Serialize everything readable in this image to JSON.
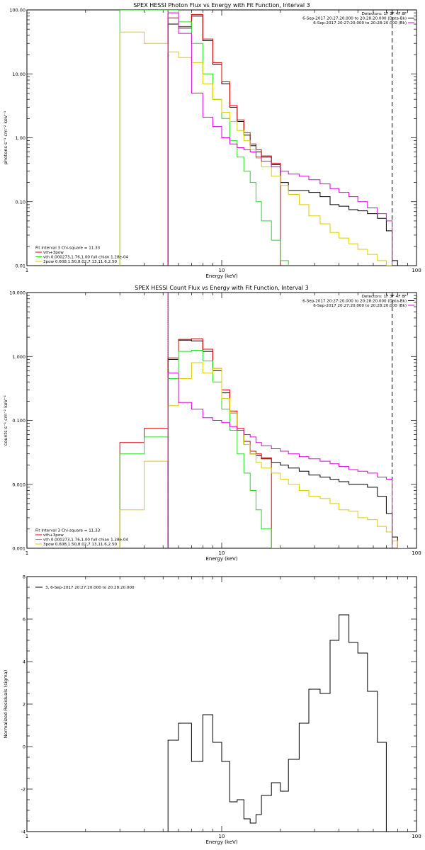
{
  "colors": {
    "black": "#000000",
    "red": "#dd0000",
    "green": "#22dd22",
    "yellow": "#ddcc00",
    "magenta": "#dd00dd",
    "purple": "#8800aa"
  },
  "chart_data": [
    {
      "type": "line",
      "title": "SPEX HESSI Photon Flux vs Energy with Fit Function, Interval 3",
      "xlabel": "Energy (keV)",
      "ylabel": "photons s⁻¹ cm⁻² keV⁻¹",
      "xscale": "log",
      "yscale": "log",
      "xlim": [
        1,
        100
      ],
      "ylim": [
        0.01,
        100
      ],
      "xticks": [
        {
          "v": 1,
          "label": "1"
        },
        {
          "v": 10,
          "label": "10"
        },
        {
          "v": 100,
          "label": "100"
        }
      ],
      "yticks": [
        {
          "v": 0.01,
          "label": "0.01"
        },
        {
          "v": 0.1,
          "label": "0.10"
        },
        {
          "v": 1,
          "label": "1.00"
        },
        {
          "v": 10,
          "label": "10.00"
        },
        {
          "v": 100,
          "label": "100.00"
        }
      ],
      "legend_top": [
        {
          "text": "Detectors: 1F 3F 4F 8F",
          "color": ""
        },
        {
          "text": "6-Sep-2017 20:27:20.000 to 20:28:20.000 (Data-Bk)",
          "color": "black"
        },
        {
          "text": "6-Sep-2017 20:27:20.000 to 20:28:20.000 (Bk)",
          "color": "magenta"
        }
      ],
      "legend_bottom": [
        {
          "text": "Fit Interval 3   Chi-square = 11.33",
          "color": ""
        },
        {
          "text": "vth+3pow",
          "color": "red"
        },
        {
          "text": "vth 0.000273,1.76,1.00   full chian 1.28e-04",
          "color": "green"
        },
        {
          "text": "3pow 0.608,1.50,8.02,7.13,11.6,2.50",
          "color": "yellow"
        }
      ],
      "vlines": [
        {
          "x": 5.3,
          "color": "purple",
          "dash": ""
        },
        {
          "x": 75,
          "color": "black",
          "dash": "6,4"
        }
      ],
      "edges": [
        3,
        4,
        5.3,
        6,
        7,
        8,
        9,
        10,
        11,
        12,
        13,
        14,
        15,
        16,
        18,
        20,
        22,
        25,
        28,
        32,
        36,
        40,
        45,
        50,
        56,
        63,
        70,
        75,
        80
      ],
      "series": [
        {
          "color": "black",
          "values": [
            null,
            null,
            60,
            52,
            80,
            33,
            14,
            7,
            3,
            1.8,
            1.1,
            0.75,
            0.6,
            0.5,
            0.38,
            0.2,
            0.15,
            0.15,
            0.14,
            0.12,
            0.09,
            0.085,
            0.075,
            0.072,
            0.065,
            0.055,
            0.035,
            0.012
          ]
        },
        {
          "color": "red",
          "values": [
            null,
            null,
            75,
            55,
            85,
            35,
            15,
            7.5,
            3.2,
            1.9,
            1.2,
            0.8,
            0.65,
            0.52,
            0.4,
            null,
            null,
            null,
            null,
            null,
            null,
            null,
            null,
            null,
            null,
            null,
            null,
            null
          ]
        },
        {
          "color": "green",
          "values": [
            100,
            100,
            100,
            65,
            30,
            10,
            4,
            2,
            0.9,
            0.5,
            0.3,
            0.2,
            0.1,
            0.05,
            0.025,
            0.012,
            null,
            null,
            null,
            null,
            null,
            null,
            null,
            null,
            null,
            null,
            null,
            null
          ]
        },
        {
          "color": "yellow",
          "values": [
            45,
            30,
            22,
            18,
            15,
            7,
            4,
            2.5,
            1.8,
            1.3,
            0.9,
            0.65,
            0.48,
            0.35,
            0.25,
            0.18,
            0.13,
            0.09,
            0.06,
            0.045,
            0.033,
            0.027,
            0.022,
            0.018,
            0.015,
            0.012,
            0.01,
            null
          ]
        },
        {
          "color": "magenta",
          "values": [
            null,
            null,
            90,
            43,
            5,
            2.1,
            1.5,
            1,
            0.8,
            0.7,
            0.65,
            0.6,
            0.5,
            0.43,
            0.35,
            0.3,
            0.27,
            0.25,
            0.22,
            0.19,
            0.16,
            0.14,
            0.12,
            0.1,
            0.08,
            0.065,
            0.05,
            null
          ]
        }
      ]
    },
    {
      "type": "line",
      "title": "SPEX HESSI Count Flux vs Energy with Fit Function, Interval 3",
      "xlabel": "Energy (keV)",
      "ylabel": "counts s⁻¹ cm⁻² keV⁻¹",
      "xscale": "log",
      "yscale": "log",
      "xlim": [
        1,
        100
      ],
      "ylim": [
        0.001,
        10
      ],
      "xticks": [
        {
          "v": 1,
          "label": "1"
        },
        {
          "v": 10,
          "label": "10"
        },
        {
          "v": 100,
          "label": "100"
        }
      ],
      "yticks": [
        {
          "v": 0.001,
          "label": "0.001"
        },
        {
          "v": 0.01,
          "label": "0.010"
        },
        {
          "v": 0.1,
          "label": "0.100"
        },
        {
          "v": 1,
          "label": "1.000"
        },
        {
          "v": 10,
          "label": "10.000"
        }
      ],
      "legend_top": [
        {
          "text": "Detectors: 1F 3F 4F 8F",
          "color": ""
        },
        {
          "text": "6-Sep-2017 20:27:20.000 to 20:28:20.000 (Data-Bk)",
          "color": "black"
        },
        {
          "text": "6-Sep-2017 20:27:20.000 to 20:28:20.000 (Bk)",
          "color": "magenta"
        }
      ],
      "legend_bottom": [
        {
          "text": "Fit Interval 3   Chi-square = 11.33",
          "color": ""
        },
        {
          "text": "vth+3pow",
          "color": "red"
        },
        {
          "text": "vth 0.000273,1.76,1.00   full chian 1.28e-04",
          "color": "green"
        },
        {
          "text": "3pow 0.608,1.50,8.02,7.13,11.6,2.50",
          "color": "yellow"
        }
      ],
      "vlines": [
        {
          "x": 5.3,
          "color": "black",
          "dash": "1,2"
        },
        {
          "x": 5.3,
          "color": "purple",
          "dash": ""
        },
        {
          "x": 75,
          "color": "black",
          "dash": "6,4"
        }
      ],
      "edges": [
        3,
        4,
        5.3,
        6,
        7,
        8,
        9,
        10,
        11,
        12,
        13,
        14,
        15,
        16,
        18,
        20,
        22,
        25,
        28,
        32,
        36,
        40,
        45,
        50,
        56,
        63,
        70,
        75,
        80,
        90
      ],
      "series": [
        {
          "color": "black",
          "values": [
            null,
            null,
            0.9,
            1.8,
            1.75,
            1.2,
            0.6,
            0.27,
            0.13,
            0.07,
            0.042,
            0.03,
            0.028,
            0.025,
            0.022,
            0.02,
            0.018,
            0.016,
            0.014,
            0.013,
            0.012,
            0.011,
            0.01,
            0.01,
            0.009,
            0.0065,
            0.0035,
            0.0015,
            null
          ]
        },
        {
          "color": "red",
          "values": [
            0.045,
            0.075,
            0.95,
            1.85,
            1.9,
            1.3,
            0.65,
            0.3,
            0.14,
            0.075,
            0.047,
            0.033,
            0.03,
            0.026,
            null,
            null,
            null,
            null,
            null,
            null,
            null,
            null,
            null,
            null,
            null,
            null,
            null,
            null,
            null
          ]
        },
        {
          "color": "green",
          "values": [
            0.03,
            0.055,
            0.45,
            1.2,
            1.25,
            0.85,
            0.4,
            0.15,
            0.07,
            0.03,
            0.015,
            0.008,
            0.004,
            0.002,
            0.001,
            null,
            null,
            null,
            null,
            null,
            null,
            null,
            null,
            null,
            null,
            null,
            null,
            null,
            null
          ]
        },
        {
          "color": "yellow",
          "values": [
            0.004,
            0.023,
            0.17,
            0.45,
            0.8,
            0.55,
            0.65,
            0.22,
            0.13,
            0.07,
            0.042,
            0.03,
            0.022,
            0.018,
            0.015,
            0.012,
            0.01,
            0.008,
            0.0065,
            0.006,
            0.005,
            0.004,
            0.0038,
            0.003,
            0.0028,
            0.0022,
            0.0018,
            0.0013,
            0.001
          ]
        },
        {
          "color": "magenta",
          "values": [
            null,
            null,
            0.55,
            0.19,
            0.15,
            0.11,
            0.1,
            0.092,
            0.08,
            0.07,
            0.06,
            0.055,
            0.045,
            0.04,
            0.036,
            0.033,
            0.03,
            0.027,
            0.025,
            0.023,
            0.021,
            0.019,
            0.017,
            0.016,
            0.015,
            0.013,
            0.012,
            null,
            null
          ]
        }
      ]
    },
    {
      "type": "line",
      "title": "",
      "xlabel": "Energy (keV)",
      "ylabel": "Normalized Residuals (sigma)",
      "xscale": "log",
      "yscale": "linear",
      "xlim": [
        1,
        100
      ],
      "ylim": [
        -4,
        8
      ],
      "xticks": [
        {
          "v": 1,
          "label": "1"
        },
        {
          "v": 10,
          "label": "10"
        },
        {
          "v": 100,
          "label": "100"
        }
      ],
      "yticks": [
        {
          "v": -4,
          "label": "-4"
        },
        {
          "v": -2,
          "label": "-2"
        },
        {
          "v": 0,
          "label": "0"
        },
        {
          "v": 2,
          "label": "2"
        },
        {
          "v": 4,
          "label": "4"
        },
        {
          "v": 6,
          "label": "6"
        },
        {
          "v": 8,
          "label": "8"
        }
      ],
      "legend_top": [],
      "legend_inside": [
        {
          "text": "3,  6-Sep-2017 20:27:20.000 to 20:28:20.000",
          "color": "black"
        }
      ],
      "legend_bottom": [],
      "vlines": [],
      "edges": [
        5.3,
        6,
        7,
        8,
        9,
        10,
        11,
        12,
        13,
        14,
        15,
        16,
        18,
        20,
        22,
        25,
        28,
        32,
        36,
        40,
        45,
        50,
        56,
        63,
        70,
        75
      ],
      "residual": true,
      "series": [
        {
          "color": "black",
          "values": [
            0.3,
            1.1,
            -0.7,
            1.5,
            0.2,
            -0.7,
            -2.6,
            -2.5,
            -3.4,
            -3.6,
            -3.2,
            -2.3,
            -1.7,
            -2.1,
            -0.6,
            1.1,
            2.7,
            2.5,
            5.0,
            6.2,
            4.9,
            4.4,
            2.6,
            0.2,
            null
          ]
        }
      ]
    }
  ]
}
